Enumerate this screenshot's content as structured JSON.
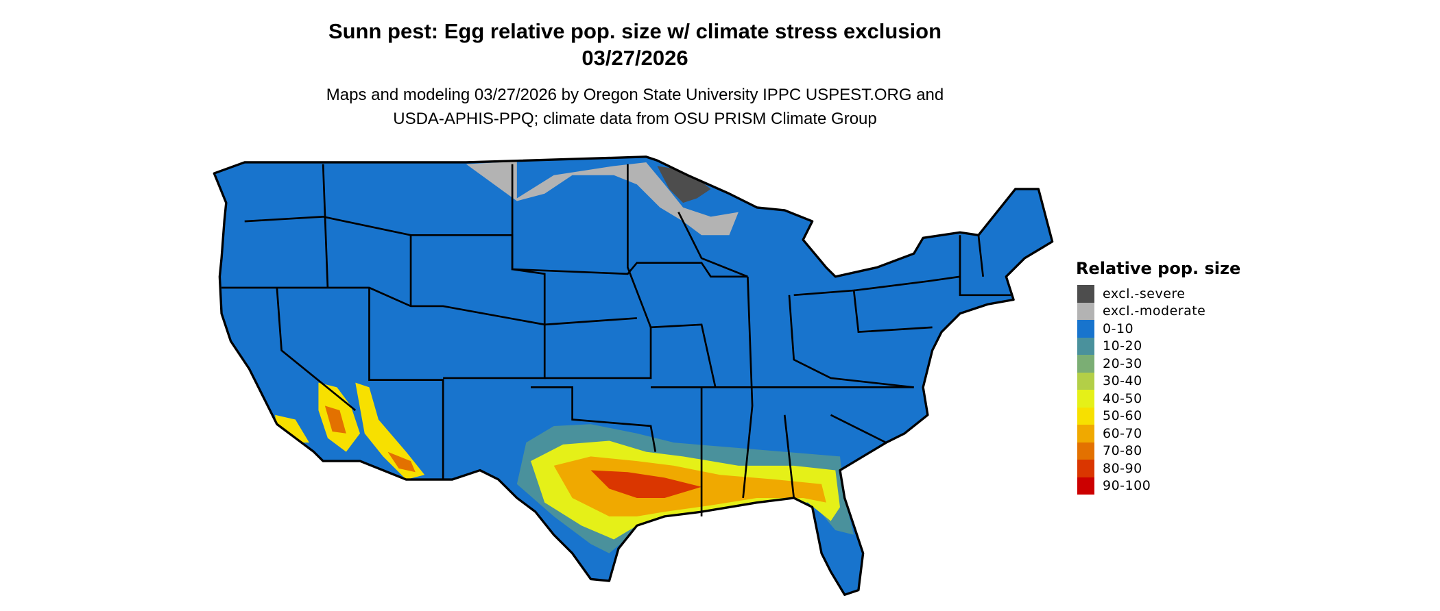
{
  "title": {
    "line1": "Sunn pest: Egg relative pop. size w/ climate stress exclusion",
    "line2": "03/27/2026"
  },
  "subtitle": {
    "line1": "Maps and modeling 03/27/2026 by Oregon State University IPPC USPEST.ORG and",
    "line2": "USDA-APHIS-PPQ; climate data from OSU PRISM Climate Group"
  },
  "legend": {
    "title": "Relative pop. size",
    "items": [
      {
        "label": "excl.-severe",
        "color": "#4d4d4d"
      },
      {
        "label": "excl.-moderate",
        "color": "#b3b3b3"
      },
      {
        "label": "0-10",
        "color": "#1874cd"
      },
      {
        "label": "10-20",
        "color": "#4a919c"
      },
      {
        "label": "20-30",
        "color": "#7bae74"
      },
      {
        "label": "30-40",
        "color": "#b3cf47"
      },
      {
        "label": "40-50",
        "color": "#e5f018"
      },
      {
        "label": "50-60",
        "color": "#f7e000"
      },
      {
        "label": "60-70",
        "color": "#f0a900"
      },
      {
        "label": "70-80",
        "color": "#e37100"
      },
      {
        "label": "80-90",
        "color": "#da3600"
      },
      {
        "label": "90-100",
        "color": "#cc0000"
      }
    ]
  }
}
